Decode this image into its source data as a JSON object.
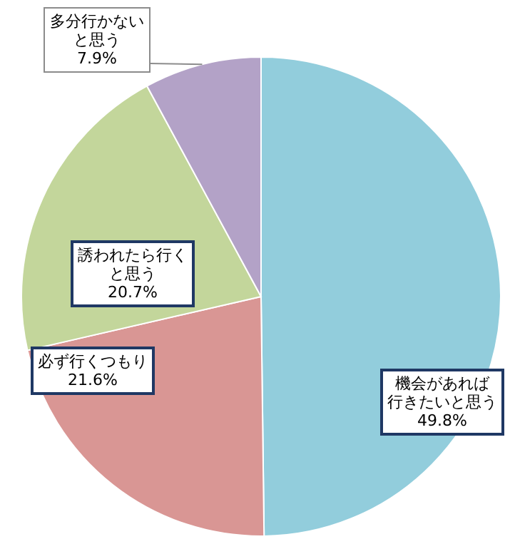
{
  "chart_data": {
    "type": "pie",
    "categories": [
      "機会があれば行きたいと思う",
      "必ず行くつもり",
      "誘われたら行くと思う",
      "多分行かないと思う"
    ],
    "values": [
      49.8,
      21.6,
      20.7,
      7.9
    ],
    "value_labels": [
      "49.8%",
      "21.6%",
      "20.7%",
      "7.9%"
    ],
    "colors": [
      "#92cddc",
      "#d99694",
      "#c3d69b",
      "#b3a2c7"
    ]
  }
}
